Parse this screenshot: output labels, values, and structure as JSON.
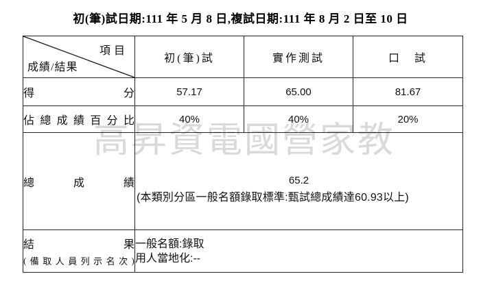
{
  "title": "初(筆)試日期:111 年 5 月 8 日,複試日期:111 年 8 月 2 日至 10 日",
  "watermark": {
    "text": "高昇資電國營家教",
    "color": "#d9d9d9"
  },
  "table": {
    "corner": {
      "top_label": "項目",
      "bottom_label": "成績/結果"
    },
    "columns": [
      "初(筆)試",
      "實作測試",
      "口　試"
    ],
    "rows": {
      "score": {
        "label": "得分",
        "values": [
          "57.17",
          "65.00",
          "81.67"
        ]
      },
      "weight": {
        "label": "佔總成績百分比",
        "values": [
          "40%",
          "40%",
          "20%"
        ]
      },
      "total": {
        "label": "總成績",
        "score": "65.2",
        "note": "(本類別分區一般名額錄取標準:甄試總成績達60.93以上)"
      },
      "result": {
        "label": "結果",
        "sublabel": "(備取人員列示名次)",
        "lines": [
          "一般名額:錄取",
          "用人當地化:--"
        ]
      }
    }
  }
}
